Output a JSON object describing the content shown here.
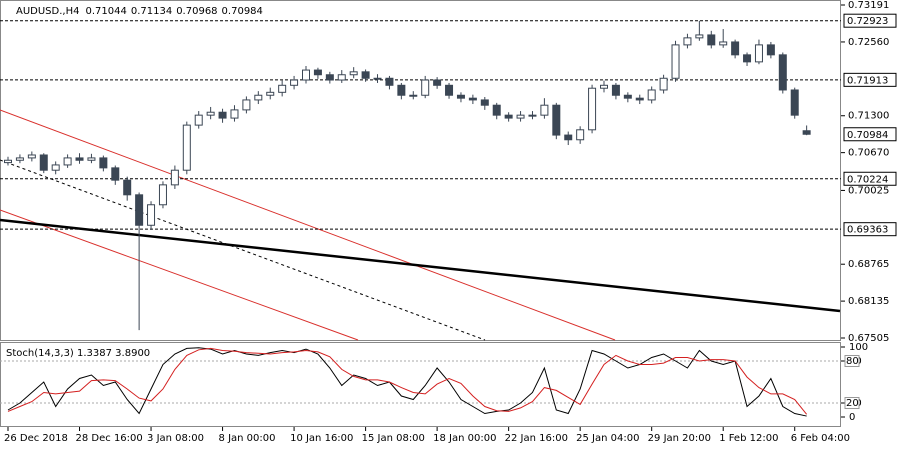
{
  "chart_data": {
    "type": "candlestick",
    "header": {
      "symbol": "AUDUSD.,H4"
    },
    "ylim": [
      0.67505,
      0.73191
    ],
    "yticks": [
      {
        "value": 0.73191,
        "label": "0.73191"
      },
      {
        "value": 0.7256,
        "label": "0.72560"
      },
      {
        "value": 0.713,
        "label": "0.71300"
      },
      {
        "value": 0.7067,
        "label": "0.70670"
      },
      {
        "value": 0.70025,
        "label": "0.70025"
      },
      {
        "value": 0.68765,
        "label": "0.68765"
      },
      {
        "value": 0.68135,
        "label": "0.68135"
      },
      {
        "value": 0.67505,
        "label": "0.67505"
      }
    ],
    "price_levels": [
      0.72923,
      0.71913,
      0.70224,
      0.69363
    ],
    "xticks": [
      {
        "value": 0,
        "label": "26 Dec 2018"
      },
      {
        "value": 6,
        "label": "28 Dec 16:00"
      },
      {
        "value": 12,
        "label": "3 Jan 08:00"
      },
      {
        "value": 18,
        "label": "8 Jan 00:00"
      },
      {
        "value": 24,
        "label": "10 Jan 16:00"
      },
      {
        "value": 30,
        "label": "15 Jan 08:00"
      },
      {
        "value": 36,
        "label": "18 Jan 00:00"
      },
      {
        "value": 42,
        "label": "22 Jan 16:00"
      },
      {
        "value": 48,
        "label": "25 Jan 04:00"
      },
      {
        "value": 54,
        "label": "29 Jan 20:00"
      },
      {
        "value": 60,
        "label": "1 Feb 12:00"
      },
      {
        "value": 66,
        "label": "6 Feb 04:00"
      }
    ],
    "candles": {
      "color": "#3b4654",
      "open": [
        0.705,
        0.7054,
        0.7058,
        0.7063,
        0.7037,
        0.7046,
        0.7058,
        0.7054,
        0.7058,
        0.7041,
        0.702,
        0.6995,
        0.6943,
        0.6978,
        0.7012,
        0.7037,
        0.7114,
        0.7131,
        0.7136,
        0.7126,
        0.714,
        0.7157,
        0.7165,
        0.717,
        0.7182,
        0.7191,
        0.7208,
        0.72,
        0.7191,
        0.72,
        0.7205,
        0.7194,
        0.7194,
        0.7182,
        0.7165,
        0.7165,
        0.7191,
        0.7182,
        0.7165,
        0.716,
        0.7157,
        0.7148,
        0.7131,
        0.7126,
        0.7131,
        0.7131,
        0.7148,
        0.7097,
        0.7089,
        0.7106,
        0.7177,
        0.7182,
        0.7165,
        0.716,
        0.7157,
        0.7174,
        0.7194,
        0.7251,
        0.7263,
        0.7268,
        0.7251,
        0.7256,
        0.7234,
        0.7222,
        0.7251,
        0.7234,
        0.7174,
        0.71044
      ],
      "high": [
        0.706,
        0.7064,
        0.7069,
        0.7066,
        0.7052,
        0.7064,
        0.7066,
        0.7065,
        0.7062,
        0.7045,
        0.7026,
        0.6999,
        0.6984,
        0.7018,
        0.7045,
        0.712,
        0.7138,
        0.7145,
        0.7142,
        0.7148,
        0.7163,
        0.7172,
        0.7178,
        0.719,
        0.7198,
        0.7215,
        0.7212,
        0.7205,
        0.7208,
        0.7213,
        0.7209,
        0.7201,
        0.7198,
        0.7186,
        0.7172,
        0.7198,
        0.7196,
        0.7186,
        0.717,
        0.7166,
        0.7162,
        0.7152,
        0.7136,
        0.7138,
        0.7138,
        0.716,
        0.7152,
        0.7103,
        0.7112,
        0.7183,
        0.719,
        0.7186,
        0.717,
        0.7166,
        0.718,
        0.72,
        0.7258,
        0.727,
        0.7292,
        0.7275,
        0.7278,
        0.726,
        0.7238,
        0.726,
        0.7256,
        0.7238,
        0.7178,
        0.71134
      ],
      "low": [
        0.7045,
        0.7049,
        0.7052,
        0.7032,
        0.703,
        0.7041,
        0.7048,
        0.7049,
        0.7035,
        0.7012,
        0.6985,
        0.6764,
        0.6935,
        0.6972,
        0.7005,
        0.703,
        0.7108,
        0.7124,
        0.7118,
        0.712,
        0.7134,
        0.715,
        0.7158,
        0.7163,
        0.7175,
        0.7185,
        0.7193,
        0.7185,
        0.7186,
        0.7194,
        0.7188,
        0.7186,
        0.7175,
        0.7158,
        0.7158,
        0.716,
        0.7176,
        0.7159,
        0.7153,
        0.715,
        0.714,
        0.7124,
        0.712,
        0.712,
        0.7124,
        0.7125,
        0.709,
        0.708,
        0.7082,
        0.71,
        0.717,
        0.7158,
        0.7153,
        0.715,
        0.7151,
        0.7168,
        0.7188,
        0.7245,
        0.7258,
        0.7245,
        0.7246,
        0.7228,
        0.7215,
        0.7218,
        0.7228,
        0.7168,
        0.7125,
        0.70968
      ],
      "close": [
        0.7054,
        0.7058,
        0.7063,
        0.7037,
        0.7046,
        0.7058,
        0.7054,
        0.7058,
        0.7041,
        0.702,
        0.6995,
        0.6943,
        0.6978,
        0.7012,
        0.7037,
        0.7114,
        0.7131,
        0.7136,
        0.7126,
        0.714,
        0.7157,
        0.7165,
        0.717,
        0.7182,
        0.7191,
        0.7208,
        0.72,
        0.7191,
        0.72,
        0.7205,
        0.7194,
        0.7194,
        0.7182,
        0.7165,
        0.7165,
        0.7191,
        0.7182,
        0.7165,
        0.716,
        0.7157,
        0.7148,
        0.7131,
        0.7126,
        0.7131,
        0.7131,
        0.7148,
        0.7097,
        0.7089,
        0.7106,
        0.7177,
        0.7182,
        0.7165,
        0.716,
        0.7157,
        0.7174,
        0.7194,
        0.7251,
        0.7263,
        0.7268,
        0.7251,
        0.7256,
        0.7234,
        0.7222,
        0.7251,
        0.7234,
        0.7174,
        0.7131,
        0.70984
      ]
    },
    "stoch": {
      "title": "Stoch(14,3,3) 1.3387 3.8900",
      "ylim": [
        0,
        100
      ],
      "yticks": [
        100,
        80,
        20,
        0
      ],
      "levels": [
        80,
        20
      ],
      "series": [
        {
          "color": "#000000",
          "values": [
            10,
            20,
            35,
            50,
            15,
            40,
            55,
            60,
            45,
            50,
            25,
            5,
            40,
            75,
            90,
            98,
            99,
            97,
            90,
            95,
            90,
            88,
            92,
            95,
            92,
            97,
            90,
            70,
            45,
            60,
            55,
            45,
            50,
            30,
            25,
            45,
            70,
            50,
            25,
            15,
            5,
            8,
            10,
            20,
            35,
            70,
            10,
            5,
            40,
            95,
            90,
            80,
            70,
            75,
            85,
            90,
            80,
            70,
            95,
            80,
            75,
            80,
            15,
            30,
            55,
            15,
            5,
            1.3387
          ]
        },
        {
          "color": "#d42020",
          "values": [
            8,
            15,
            22,
            35,
            33,
            35,
            37,
            52,
            53,
            52,
            40,
            27,
            23,
            40,
            68,
            88,
            96,
            98,
            95,
            94,
            92,
            91,
            90,
            92,
            93,
            95,
            93,
            86,
            68,
            58,
            53,
            53,
            50,
            42,
            35,
            33,
            47,
            55,
            48,
            30,
            15,
            9,
            8,
            13,
            22,
            42,
            38,
            28,
            18,
            47,
            75,
            88,
            80,
            75,
            75,
            77,
            85,
            85,
            80,
            82,
            82,
            80,
            57,
            42,
            33,
            33,
            25,
            3.89
          ]
        }
      ]
    }
  }
}
